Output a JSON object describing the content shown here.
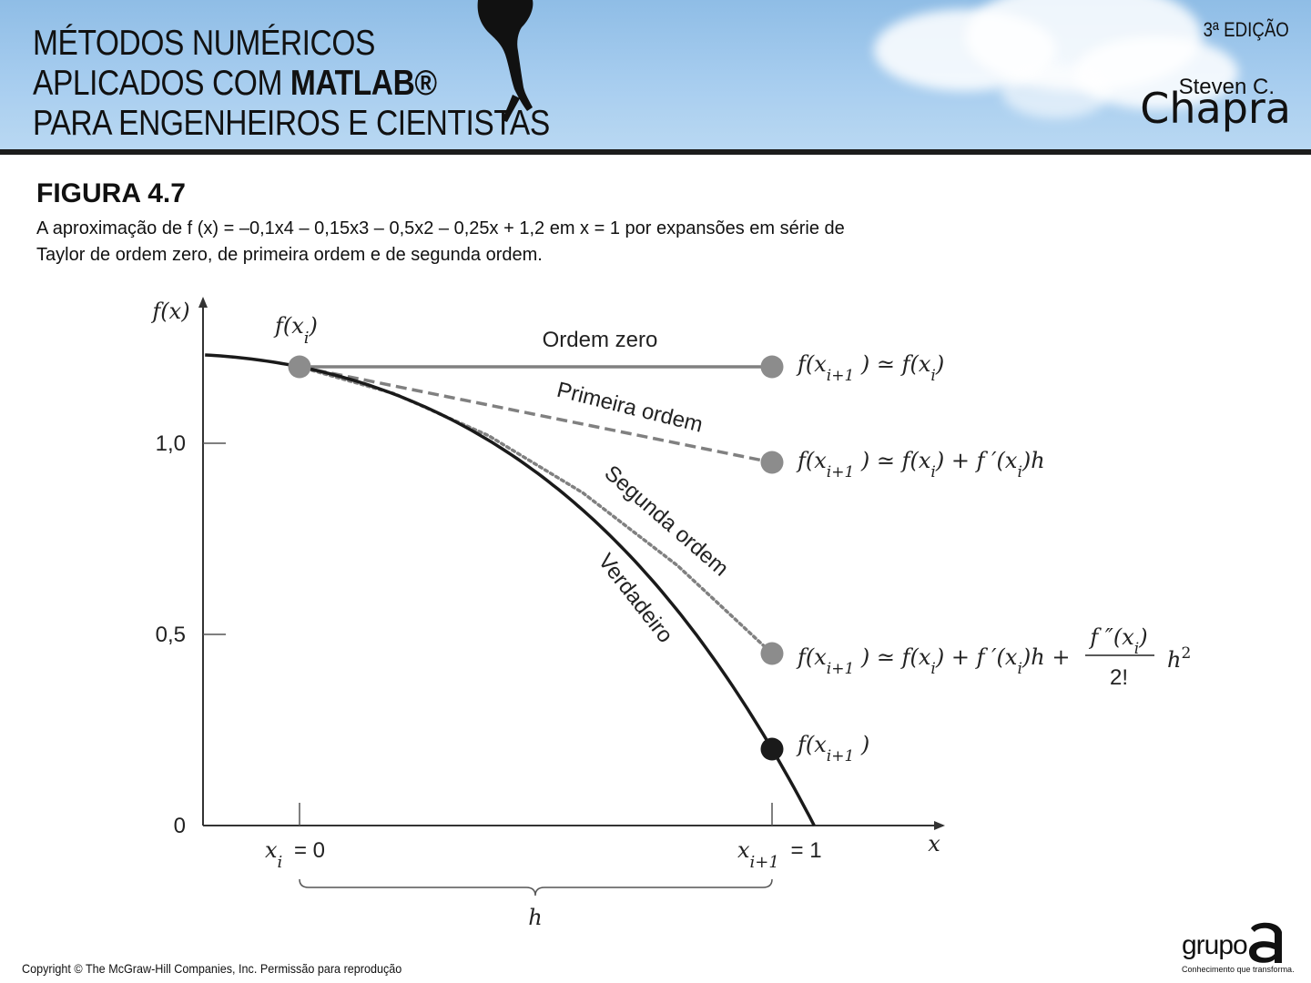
{
  "banner": {
    "title_lines": [
      "MÉTODOS NUMÉRICOS",
      "APLICADOS COM ",
      "PARA ENGENHEIROS E CIENTISTAS"
    ],
    "title_brand": "MATLAB®",
    "edition": "3ª EDIÇÃO",
    "author_first": "Steven C.",
    "author_last": "Chapra"
  },
  "figure": {
    "label": "FIGURA 4.7",
    "caption": "A aproximação de f (x) = –0,1x4 – 0,15x3 – 0,5x2 – 0,25x + 1,2 em x = 1 por expansões em série de Taylor de ordem zero, de primeira ordem e de segunda ordem."
  },
  "chart_data": {
    "type": "line",
    "ylabel": "f(x)",
    "xlabel": "x",
    "y_ticks": [
      {
        "value": 0,
        "label": "0"
      },
      {
        "value": 0.5,
        "label": "0,5"
      },
      {
        "value": 1.0,
        "label": "1,0"
      }
    ],
    "x_ticks": [
      {
        "value": 0,
        "label_var": "x",
        "label_sub": "i",
        "label_eq": "= 0"
      },
      {
        "value": 1,
        "label_var": "x",
        "label_sub": "i+1",
        "label_eq": "= 1"
      }
    ],
    "xlim": [
      -0.2,
      1.35
    ],
    "ylim": [
      0,
      1.35
    ],
    "true_function": {
      "name": "Verdadeiro",
      "coeffs": [
        -0.1,
        -0.15,
        -0.5,
        -0.25,
        1.2
      ],
      "x_range": [
        -0.2,
        1.1
      ]
    },
    "series": [
      {
        "name": "Ordem zero",
        "x": [
          0,
          1
        ],
        "y": [
          1.2,
          1.2
        ],
        "style": "solid",
        "color": "#808080"
      },
      {
        "name": "Primeira ordem",
        "x": [
          0,
          1
        ],
        "y": [
          1.2,
          0.95
        ],
        "style": "dashed",
        "color": "#808080"
      },
      {
        "name": "Segunda ordem",
        "x": [
          0,
          0.2,
          0.4,
          0.6,
          0.8,
          1.0
        ],
        "y": [
          1.2,
          1.13,
          1.02,
          0.87,
          0.68,
          0.45
        ],
        "style": "dotted",
        "color": "#808080"
      },
      {
        "name": "Verdadeiro",
        "style": "solid",
        "color": "#1a1a1a"
      }
    ],
    "points": [
      {
        "x": 0,
        "y": 1.2,
        "color": "#8c8c8c",
        "label": "f(x_i)"
      },
      {
        "x": 1,
        "y": 1.2,
        "color": "#8c8c8c"
      },
      {
        "x": 1,
        "y": 0.95,
        "color": "#8c8c8c"
      },
      {
        "x": 1,
        "y": 0.45,
        "color": "#8c8c8c"
      },
      {
        "x": 1,
        "y": 0.2,
        "color": "#1a1a1a"
      }
    ],
    "annotations": {
      "fxi": "f(x_i)",
      "zero_order": "f(x_{i+1}) ≃ f(x_i)",
      "first_order": "f(x_{i+1}) ≃ f(x_i) + f′(x_i)h",
      "second_order": "f(x_{i+1}) ≃ f(x_i) + f′(x_i)h + f″(x_i)/2! h^2",
      "true_value": "f(x_{i+1})",
      "brace_label": "h"
    }
  },
  "footer": {
    "copyright": "Copyright © The McGraw-Hill Companies, Inc. Permissão para reprodução",
    "publisher": "grupo",
    "publisher_tagline": "Conhecimento que transforma."
  }
}
